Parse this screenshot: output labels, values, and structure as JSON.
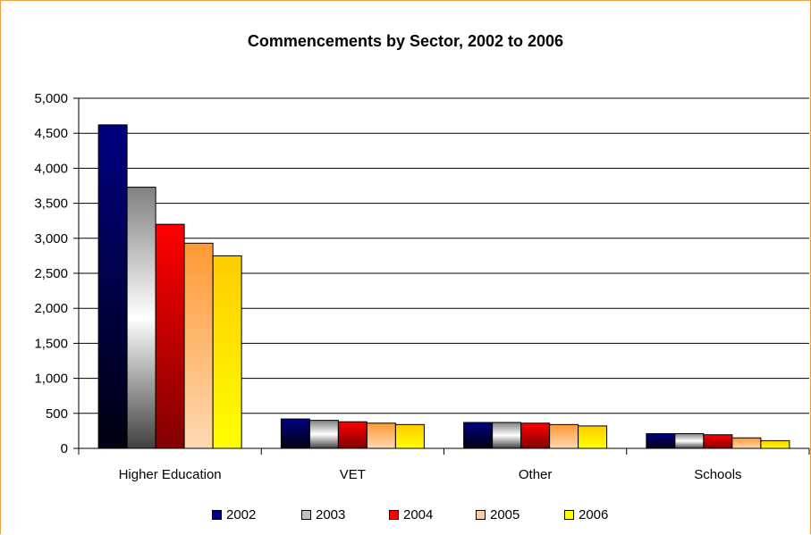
{
  "chart_data": {
    "type": "bar",
    "title": "Commencements by Sector, 2002 to 2006",
    "categories": [
      "Higher Education",
      "VET",
      "Other",
      "Schools"
    ],
    "series": [
      {
        "name": "2002",
        "values": [
          4620,
          420,
          370,
          210
        ],
        "color": "#000080"
      },
      {
        "name": "2003",
        "values": [
          3730,
          400,
          370,
          210
        ],
        "color": "#c0c0c0"
      },
      {
        "name": "2004",
        "values": [
          3200,
          380,
          360,
          195
        ],
        "color": "#ff0000"
      },
      {
        "name": "2005",
        "values": [
          2930,
          360,
          340,
          150
        ],
        "color": "#ffcc99"
      },
      {
        "name": "2006",
        "values": [
          2750,
          340,
          320,
          110
        ],
        "color": "#ffff00"
      }
    ],
    "ylim": [
      0,
      5000
    ],
    "yticks": [
      "0",
      "500",
      "1,000",
      "1,500",
      "2,000",
      "2,500",
      "3,000",
      "3,500",
      "4,000",
      "4,500",
      "5,000"
    ],
    "grid": true,
    "legend_position": "bottom"
  }
}
